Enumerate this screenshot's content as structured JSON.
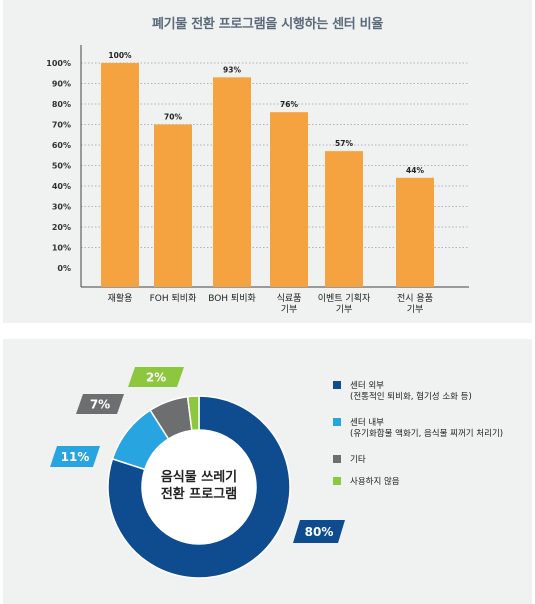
{
  "chart_data": [
    {
      "type": "bar",
      "title": "폐기물 전환 프로그램을 시행하는 센터 비율",
      "categories": [
        [
          "재활용"
        ],
        [
          "FOH 퇴비화"
        ],
        [
          "BOH 퇴비화"
        ],
        [
          "식료품",
          "기부"
        ],
        [
          "이벤트 기획자",
          "기부"
        ],
        [
          "전시 용품",
          "기부"
        ]
      ],
      "values": [
        100,
        70,
        93,
        76,
        57,
        44
      ],
      "data_labels": [
        "100%",
        "70%",
        "93%",
        "76%",
        "57%",
        "44%"
      ],
      "yticks": [
        "0%",
        "10%",
        "20%",
        "30%",
        "40%",
        "50%",
        "60%",
        "70%",
        "80%",
        "90%",
        "100%"
      ],
      "ylim": [
        0,
        100
      ],
      "grid": true,
      "color": "#f4a340"
    },
    {
      "type": "pie",
      "title": "",
      "center_label": [
        "음식물 쓰레기",
        "전환 프로그램"
      ],
      "slices": [
        {
          "label": [
            "센터 외부",
            "(전통적인 퇴비화, 혐기성 소화 등)"
          ],
          "value": 80,
          "display": "80%",
          "color": "#0f4c8f"
        },
        {
          "label": [
            "센터 내부",
            "(유기화합물 액화기, 음식물 찌꺼기 처리기)"
          ],
          "value": 11,
          "display": "11%",
          "color": "#28a4e0"
        },
        {
          "label": [
            "기타"
          ],
          "value": 7,
          "display": "7%",
          "color": "#6d6e70"
        },
        {
          "label": [
            "사용하지 않음"
          ],
          "value": 2,
          "display": "2%",
          "color": "#8dc63f"
        }
      ],
      "legend_position": "right"
    }
  ]
}
